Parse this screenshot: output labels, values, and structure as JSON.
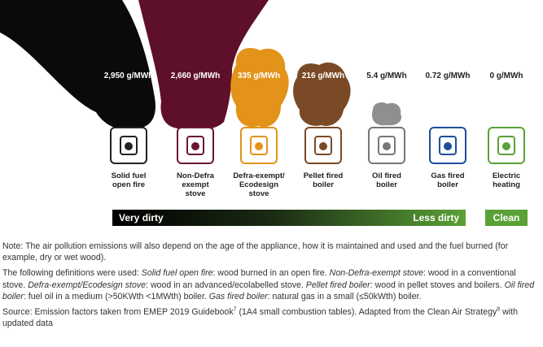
{
  "appliances": [
    {
      "emission": "2,950 g/MWh",
      "label": [
        "Solid fuel",
        "open fire"
      ]
    },
    {
      "emission": "2,660 g/MWh",
      "label": [
        "Non-Defra",
        "exempt",
        "stove"
      ]
    },
    {
      "emission": "335 g/MWh",
      "label": [
        "Defra-exempt/",
        "Ecodesign",
        "stove"
      ]
    },
    {
      "emission": "216 g/MWh",
      "label": [
        "Pellet fired",
        "boiler"
      ]
    },
    {
      "emission": "5.4 g/MWh",
      "label": [
        "Oil fired",
        "boiler"
      ]
    },
    {
      "emission": "0.72 g/MWh",
      "label": [
        "Gas fired",
        "boiler"
      ]
    },
    {
      "emission": "0 g/MWh",
      "label": [
        "Electric",
        "heating"
      ]
    }
  ],
  "scale": {
    "dirty": "Very dirty",
    "less_dirty": "Less dirty",
    "clean": "Clean"
  },
  "note": "Note: The air pollution emissions will also depend on the age of the appliance, how it is maintained and used and the fuel burned (for example, dry or wet wood).",
  "definitions": [
    {
      "text": "The following definitions were used: ",
      "italic": false
    },
    {
      "text": "Solid fuel open fire",
      "italic": true
    },
    {
      "text": ": wood burned in an open fire. ",
      "italic": false
    },
    {
      "text": "Non-Defra-exempt stove",
      "italic": true
    },
    {
      "text": ": wood in a conventional stove. ",
      "italic": false
    },
    {
      "text": "Defra-exempt/Ecodesign stove",
      "italic": true
    },
    {
      "text": ": wood in an advanced/ecolabelled stove. ",
      "italic": false
    },
    {
      "text": "Pellet fired boiler",
      "italic": true
    },
    {
      "text": ": wood in pellet stoves and boilers. ",
      "italic": false
    },
    {
      "text": "Oil fired boiler",
      "italic": true
    },
    {
      "text": ": fuel oil in a medium (>50KWth <1MWth) boiler. ",
      "italic": false
    },
    {
      "text": "Gas fired boiler",
      "italic": true
    },
    {
      "text": ": natural gas in a small (≤50kWth) boiler.",
      "italic": false
    }
  ],
  "source": [
    {
      "text": "Source: Emission factors taken from EMEP 2019 Guidebook",
      "sup": false
    },
    {
      "text": "7",
      "sup": true
    },
    {
      "text": " (1A4 small combustion tables). Adapted from the Clean Air Strategy",
      "sup": false
    },
    {
      "text": "8",
      "sup": true
    },
    {
      "text": " with updated data",
      "sup": false
    }
  ]
}
